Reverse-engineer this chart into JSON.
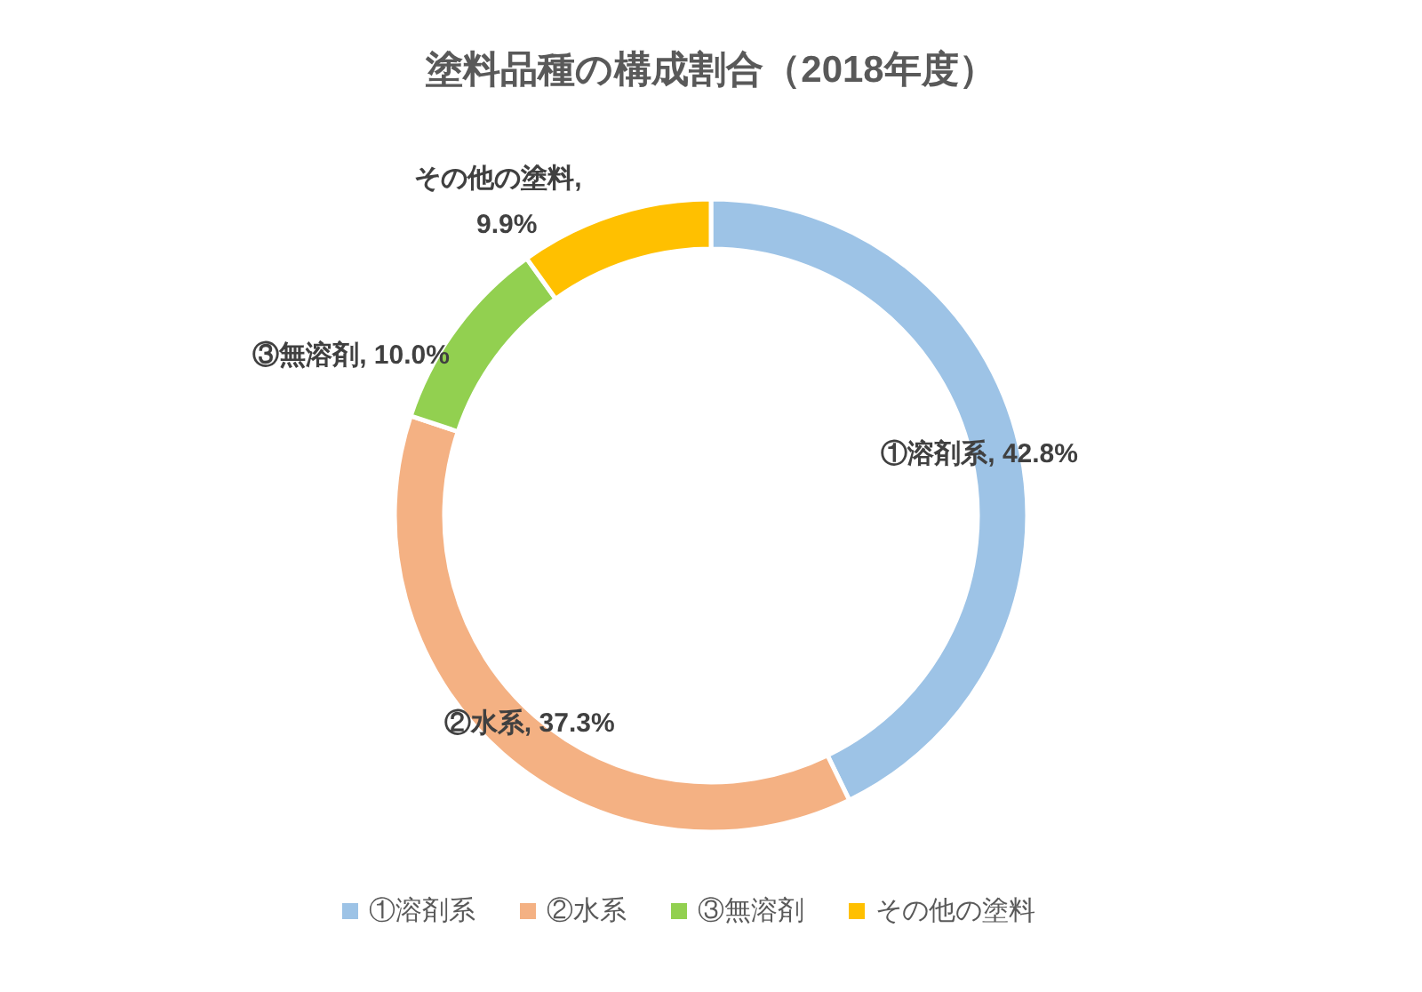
{
  "chart_data": {
    "type": "donut",
    "title": "塗料品種の構成割合（2018年度）",
    "categories": [
      "①溶剤系",
      "②水系",
      "③無溶剤",
      "その他の塗料"
    ],
    "values": [
      42.8,
      37.3,
      10.0,
      9.9
    ],
    "value_labels": [
      "①溶剤系, 42.8%",
      "②水系, 37.3%",
      "③無溶剤, 10.0%",
      "その他の塗料, 9.9%"
    ],
    "colors": [
      "#9dc3e6",
      "#f4b183",
      "#92d050",
      "#ffc000"
    ],
    "legend": "bottom"
  }
}
